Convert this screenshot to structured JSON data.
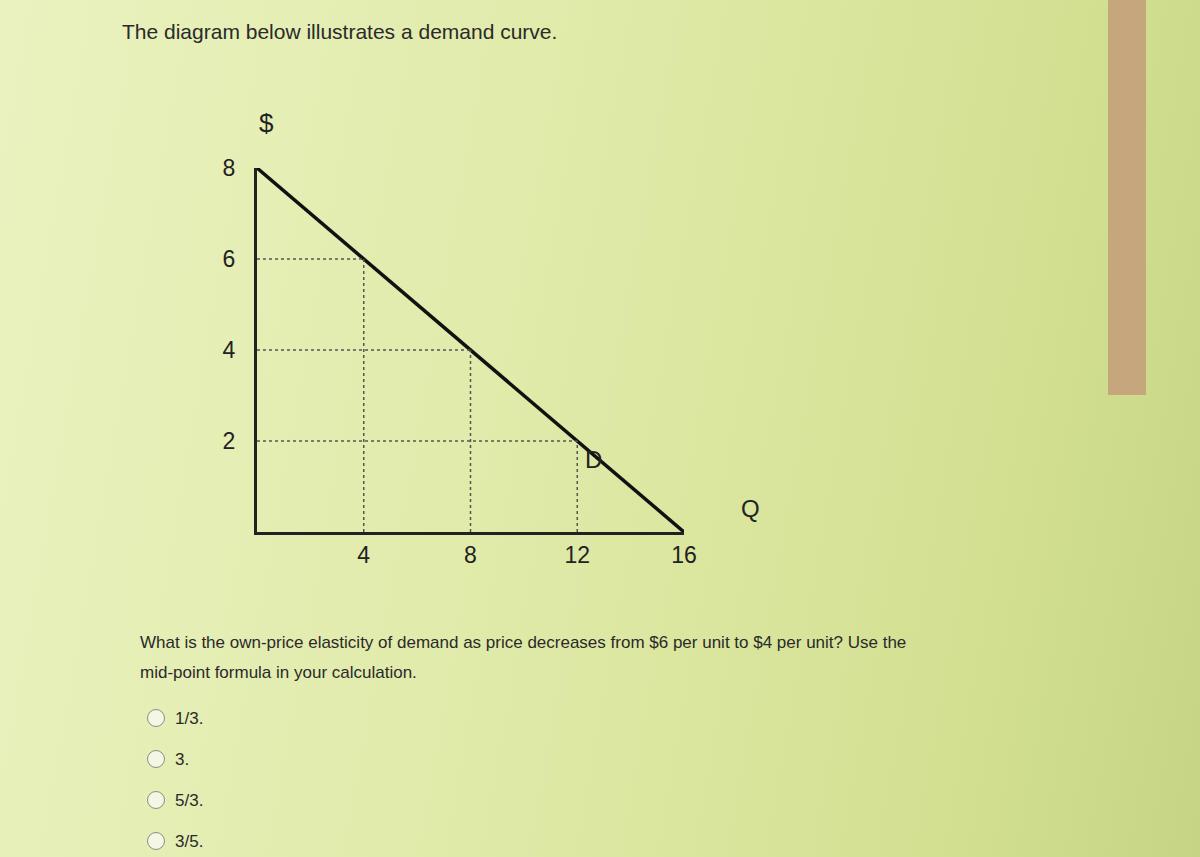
{
  "heading": "The diagram below illustrates a demand curve.",
  "chart_data": {
    "type": "line",
    "x_label": "Q",
    "y_label": "$",
    "x": [
      0,
      16
    ],
    "series": [
      {
        "color": "#111111",
        "values": [
          8,
          0
        ]
      }
    ],
    "guides": [
      {
        "x": 4,
        "y": 6
      },
      {
        "x": 8,
        "y": 4
      },
      {
        "x": 12,
        "y": 2
      }
    ],
    "annotations": [
      {
        "text": "D",
        "x": 12.6,
        "y": 1.6
      }
    ],
    "xlim": [
      0,
      16
    ],
    "ylim": [
      0,
      8
    ],
    "xticks": [
      4,
      8,
      12,
      16
    ],
    "yticks": [
      2,
      4,
      6,
      8
    ],
    "grid": false
  },
  "question": "What is the own-price elasticity of demand as price decreases from $6 per unit to $4 per unit? Use the mid-point formula in your calculation.",
  "options": [
    "1/3.",
    "3.",
    "5/3.",
    "3/5."
  ]
}
